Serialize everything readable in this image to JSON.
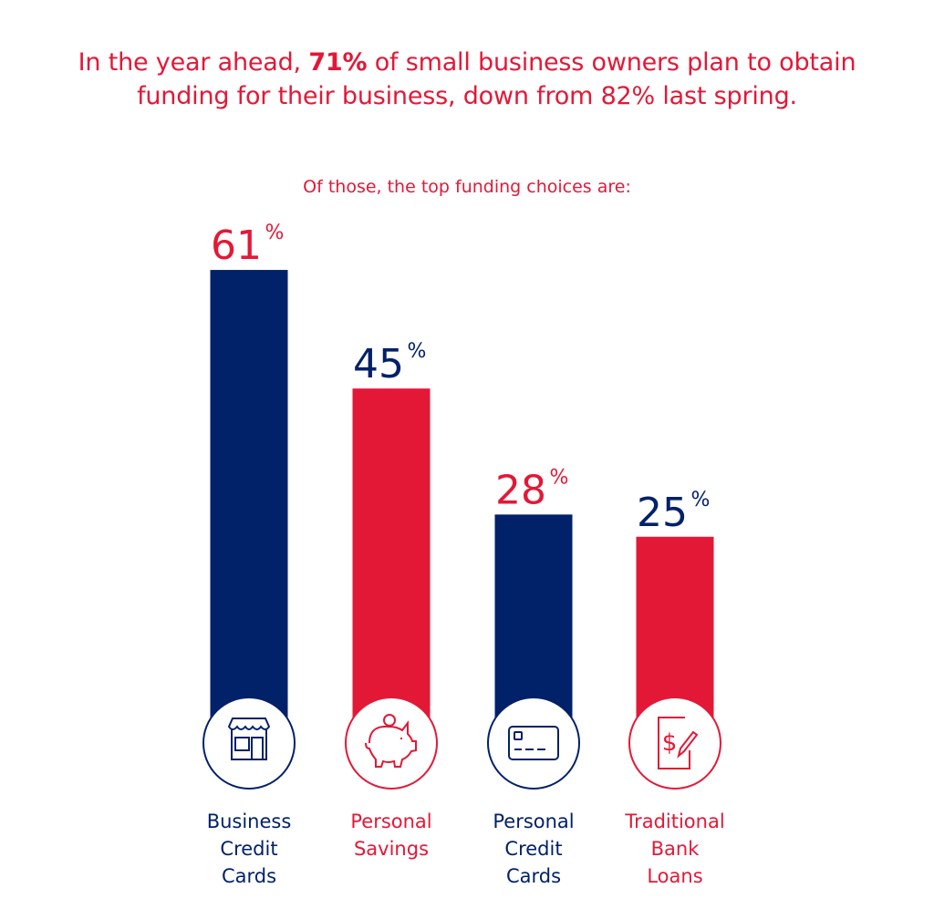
{
  "headline": {
    "before": "In the year ahead, ",
    "emphasis": "71%",
    "after": " of small business owners plan to obtain",
    "line2": "funding for their business, down from 82% last spring."
  },
  "subtitle": "Of those, the top funding choices are:",
  "colors": {
    "navy": "#012169",
    "red": "#e31837"
  },
  "chart_data": {
    "type": "bar",
    "categories": [
      "Business Credit Cards",
      "Personal Savings",
      "Personal Credit Cards",
      "Traditional Bank Loans"
    ],
    "category_lines": [
      [
        "Business",
        "Credit",
        "Cards"
      ],
      [
        "Personal",
        "Savings"
      ],
      [
        "Personal",
        "Credit",
        "Cards"
      ],
      [
        "Traditional",
        "Bank",
        "Loans"
      ]
    ],
    "values": [
      61,
      45,
      28,
      25
    ],
    "unit": "%",
    "bar_colors": [
      "#012169",
      "#e31837",
      "#012169",
      "#e31837"
    ],
    "value_label_colors": [
      "#e31837",
      "#012169",
      "#e31837",
      "#012169"
    ],
    "icons": [
      "storefront-icon",
      "piggy-bank-icon",
      "credit-card-icon",
      "loan-document-icon"
    ],
    "grid": false,
    "legend": "none"
  }
}
